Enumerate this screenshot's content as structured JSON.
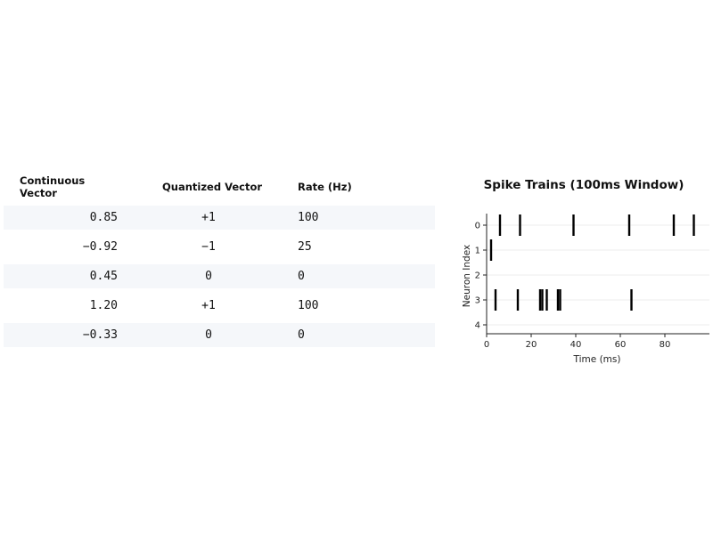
{
  "table": {
    "headers": [
      "Continuous Vector",
      "Quantized Vector",
      "Rate (Hz)"
    ],
    "rows": [
      [
        "0.85",
        "+1",
        "100"
      ],
      [
        "−0.92",
        "−1",
        "25"
      ],
      [
        "0.45",
        "0",
        "0"
      ],
      [
        "1.20",
        "+1",
        "100"
      ],
      [
        "−0.33",
        "0",
        "0"
      ]
    ]
  },
  "chart_data": {
    "type": "scatter",
    "title": "Spike Trains (100ms Window)",
    "xlabel": "Time (ms)",
    "ylabel": "Neuron Index",
    "xlim": [
      0,
      100
    ],
    "x_ticks": [
      0,
      20,
      40,
      60,
      80
    ],
    "y_ticks": [
      0,
      1,
      2,
      3,
      4
    ],
    "y_inverted": true,
    "grid": "horizontal",
    "spikes": [
      {
        "neuron": 0,
        "times": [
          6,
          15,
          39,
          64,
          84,
          93
        ]
      },
      {
        "neuron": 1,
        "times": [
          2
        ]
      },
      {
        "neuron": 2,
        "times": []
      },
      {
        "neuron": 3,
        "times": [
          4,
          14,
          24,
          25,
          27,
          32,
          33,
          65
        ]
      },
      {
        "neuron": 4,
        "times": []
      }
    ]
  }
}
